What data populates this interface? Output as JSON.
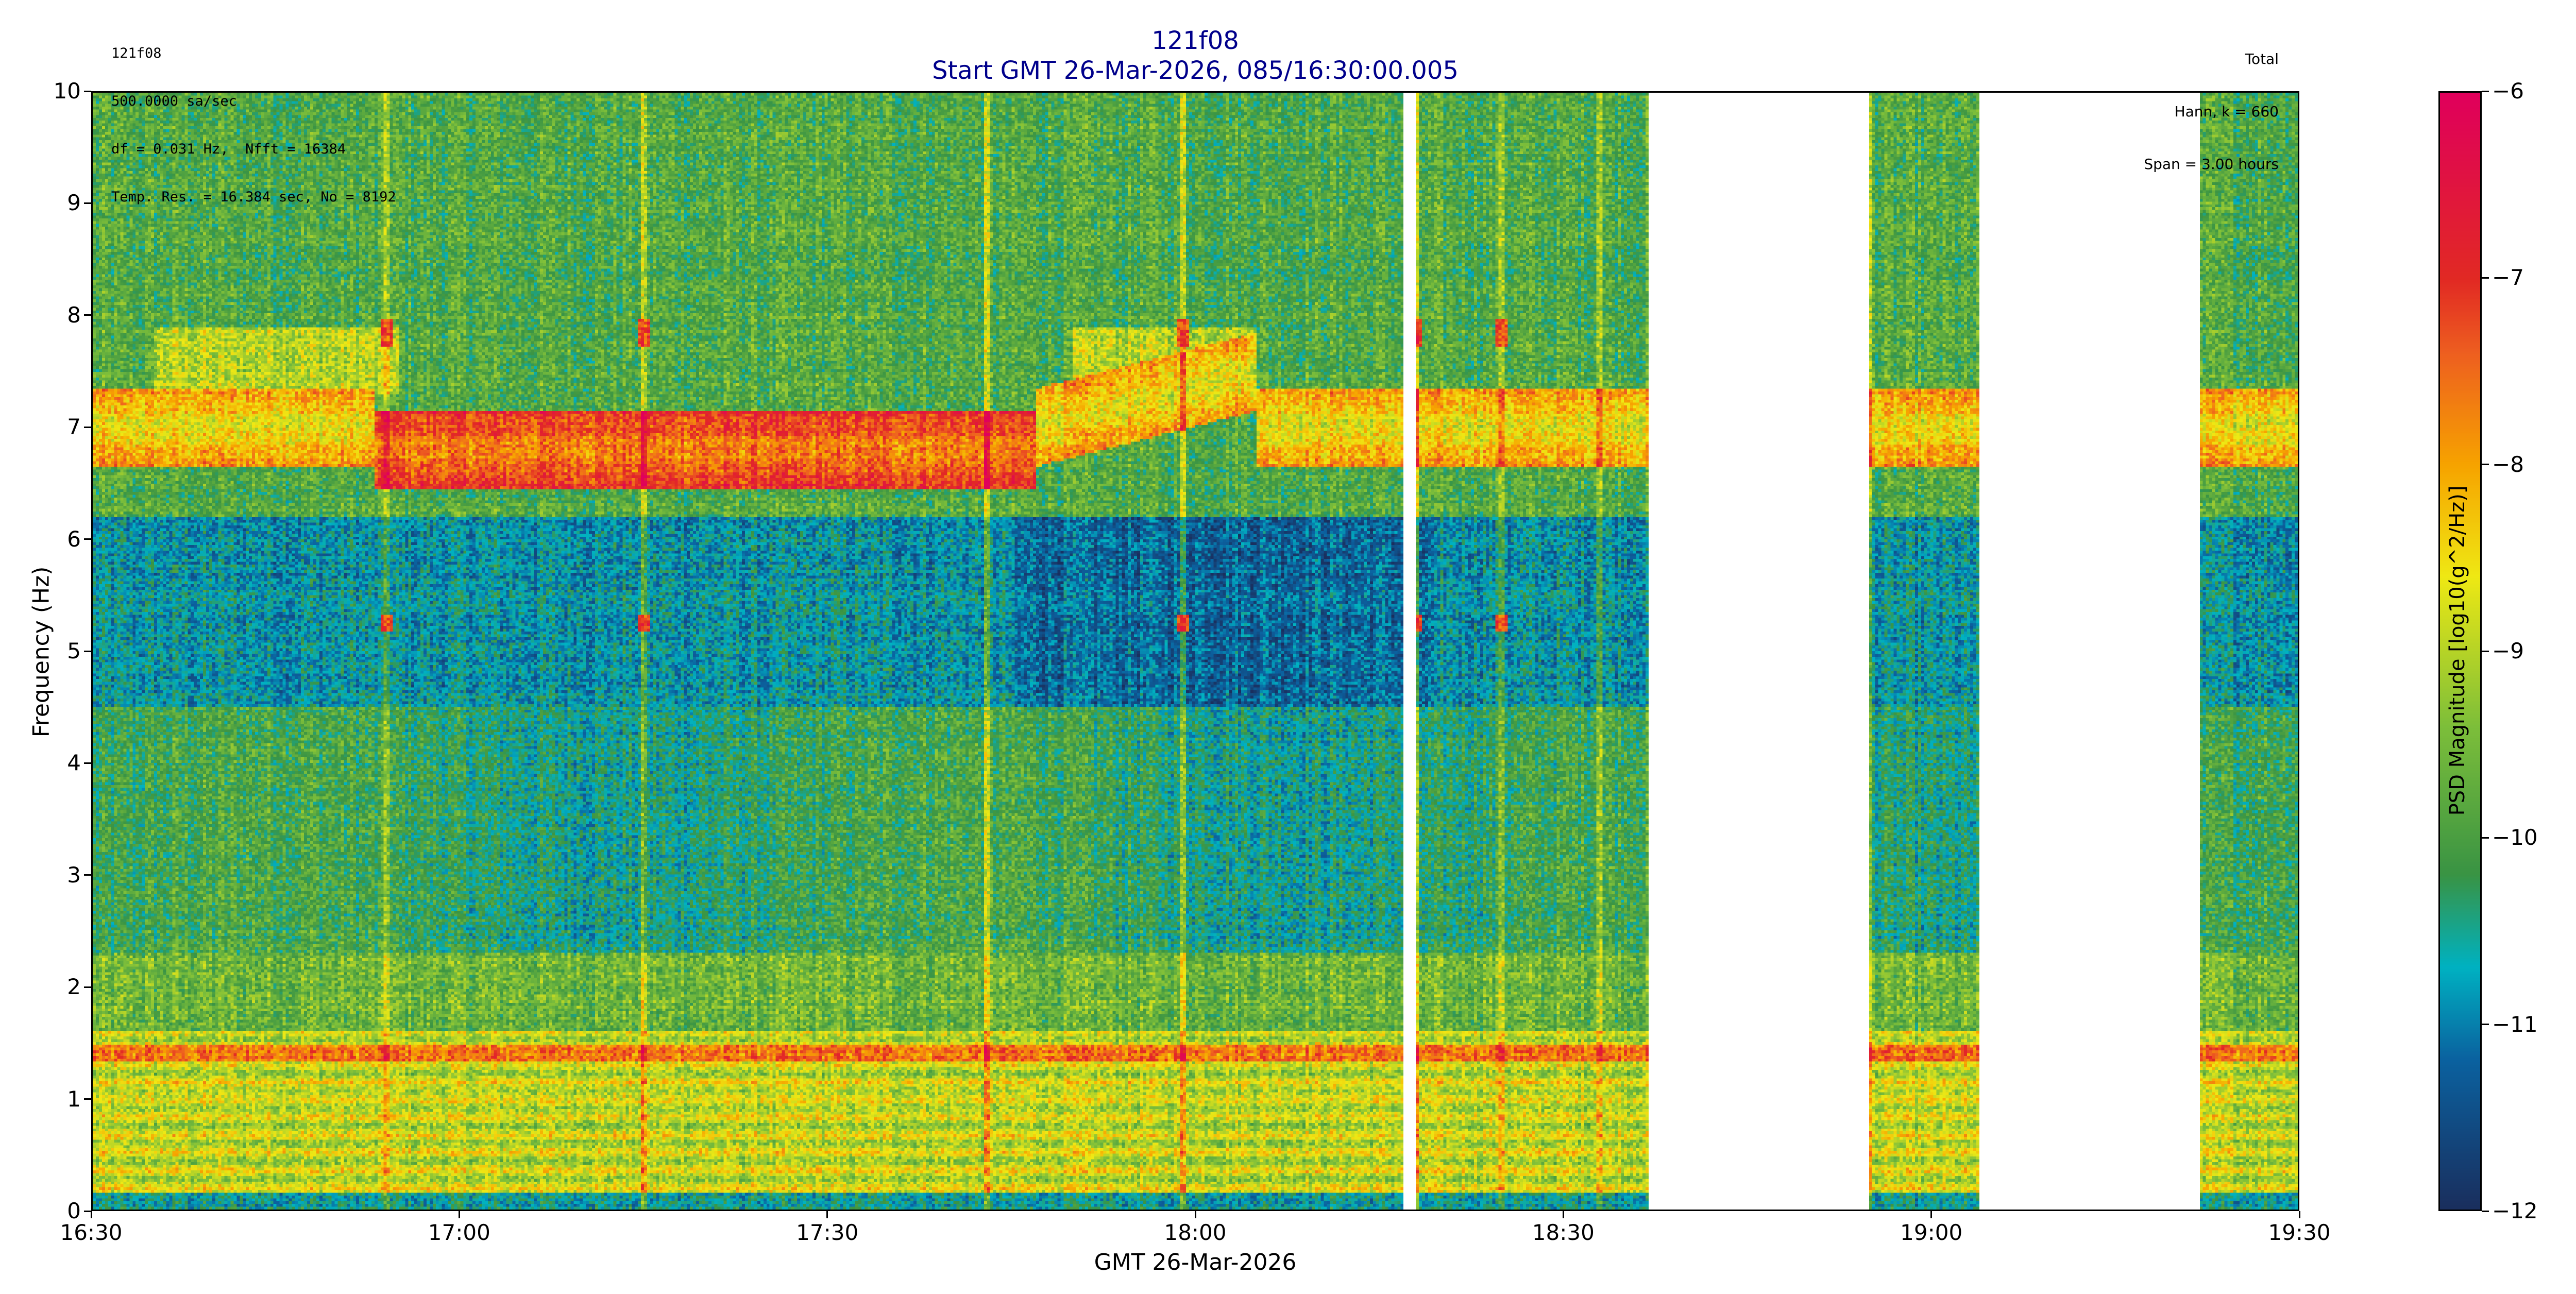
{
  "header": {
    "info_left": [
      "121f08",
      "500.0000 sa/sec",
      "df = 0.031 Hz,  Nfft = 16384",
      "Temp. Res. = 16.384 sec, No = 8192"
    ],
    "title_line1": "121f08",
    "title_line2": "Start GMT 26-Mar-2026, 085/16:30:00.005",
    "info_right": [
      "Total",
      "Hann, k = 660",
      "Span = 3.00 hours"
    ]
  },
  "chart_data": {
    "type": "heatmap",
    "title": "121f08\nStart GMT 26-Mar-2026, 085/16:30:00.005",
    "xlabel": "GMT 26-Mar-2026",
    "ylabel": "Frequency (Hz)",
    "xlim": [
      "16:30",
      "19:30"
    ],
    "ylim": [
      0,
      10
    ],
    "x_ticks": [
      "16:30",
      "17:00",
      "17:30",
      "18:00",
      "18:30",
      "19:00",
      "19:30"
    ],
    "y_ticks": [
      "0",
      "1",
      "2",
      "3",
      "4",
      "5",
      "6",
      "7",
      "8",
      "9",
      "10"
    ],
    "colorbar": {
      "label": "PSD Magnitude [log10(g^2/Hz)]",
      "range": [
        -12,
        -6
      ],
      "ticks": [
        "−12",
        "−11",
        "−10",
        "−9",
        "−8",
        "−7",
        "−6"
      ],
      "colormap": [
        {
          "value": -12,
          "color": "#1a2f5e"
        },
        {
          "value": -11.2,
          "color": "#0b62a0"
        },
        {
          "value": -10.7,
          "color": "#00b2c2"
        },
        {
          "value": -10.2,
          "color": "#3a9444"
        },
        {
          "value": -9.4,
          "color": "#7ebf3a"
        },
        {
          "value": -8.6,
          "color": "#efe914"
        },
        {
          "value": -8,
          "color": "#f7a400"
        },
        {
          "value": -7.4,
          "color": "#ee6020"
        },
        {
          "value": -7,
          "color": "#e22a24"
        },
        {
          "value": -6,
          "color": "#e0005c"
        }
      ]
    },
    "data_gaps": [
      [
        "18:17",
        "18:18"
      ],
      [
        "18:37",
        "18:55"
      ],
      [
        "19:04",
        "19:22"
      ]
    ],
    "features": [
      {
        "desc": "persistent line",
        "freq_hz": 1.4,
        "level": -7.5
      },
      {
        "desc": "band",
        "freq_hz": 6.9,
        "level": -7.7,
        "time": [
          "16:53",
          "17:45"
        ]
      },
      {
        "desc": "tonal spots",
        "freq_hz": [
          7.85,
          5.25
        ],
        "times": [
          "16:54",
          "17:15",
          "17:59",
          "18:18",
          "18:25"
        ]
      }
    ]
  }
}
